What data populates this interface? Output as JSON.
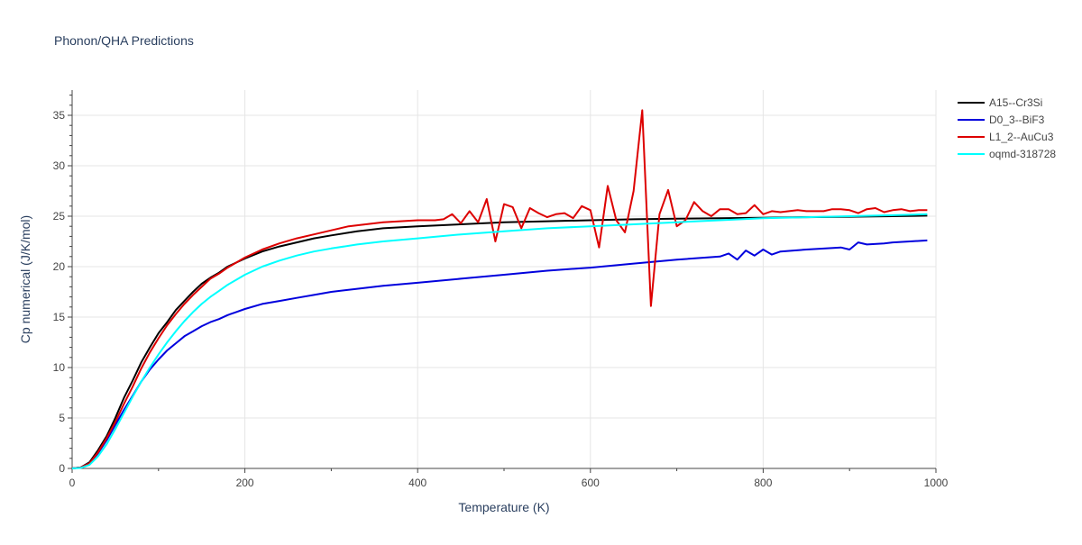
{
  "chart_data": {
    "type": "line",
    "title": "Phonon/QHA Predictions",
    "xlabel": "Temperature (K)",
    "ylabel": "Cp numerical (J/K/mol)",
    "xlim": [
      0,
      1000
    ],
    "ylim": [
      0,
      37.5
    ],
    "xticks": [
      0,
      200,
      400,
      600,
      800,
      1000
    ],
    "yticks": [
      0,
      5,
      10,
      15,
      20,
      25,
      30,
      35
    ],
    "grid": true,
    "legend_position": "top-right",
    "series": [
      {
        "name": "A15--Cr3Si",
        "color": "#000000",
        "x": [
          0,
          10,
          20,
          30,
          40,
          50,
          60,
          70,
          80,
          90,
          100,
          110,
          120,
          130,
          140,
          150,
          160,
          170,
          180,
          190,
          200,
          220,
          240,
          260,
          280,
          300,
          330,
          360,
          400,
          450,
          500,
          550,
          600,
          650,
          700,
          750,
          800,
          850,
          900,
          950,
          990
        ],
        "y": [
          0,
          0.1,
          0.6,
          1.8,
          3.2,
          5.0,
          7.0,
          8.7,
          10.5,
          12.0,
          13.4,
          14.5,
          15.7,
          16.6,
          17.5,
          18.3,
          18.9,
          19.4,
          20.0,
          20.4,
          20.8,
          21.5,
          22.0,
          22.4,
          22.8,
          23.1,
          23.5,
          23.8,
          24.0,
          24.2,
          24.4,
          24.5,
          24.6,
          24.7,
          24.75,
          24.8,
          24.85,
          24.9,
          24.95,
          25.0,
          25.05
        ]
      },
      {
        "name": "D0_3--BiF3",
        "color": "#0000dd",
        "x": [
          0,
          10,
          20,
          30,
          40,
          50,
          60,
          70,
          80,
          90,
          100,
          110,
          120,
          130,
          140,
          150,
          160,
          170,
          180,
          190,
          200,
          220,
          240,
          260,
          280,
          300,
          330,
          360,
          400,
          450,
          500,
          550,
          600,
          650,
          700,
          750,
          760,
          770,
          780,
          790,
          800,
          810,
          820,
          850,
          890,
          900,
          910,
          920,
          940,
          950,
          970,
          990
        ],
        "y": [
          0,
          0.1,
          0.5,
          1.5,
          2.8,
          4.3,
          5.8,
          7.2,
          8.6,
          9.8,
          10.8,
          11.7,
          12.4,
          13.1,
          13.6,
          14.1,
          14.5,
          14.8,
          15.2,
          15.5,
          15.8,
          16.3,
          16.6,
          16.9,
          17.2,
          17.5,
          17.8,
          18.1,
          18.4,
          18.8,
          19.2,
          19.6,
          19.9,
          20.3,
          20.7,
          21.0,
          21.3,
          20.7,
          21.6,
          21.1,
          21.7,
          21.2,
          21.5,
          21.7,
          21.9,
          21.7,
          22.4,
          22.2,
          22.3,
          22.4,
          22.5,
          22.6
        ]
      },
      {
        "name": "L1_2--AuCu3",
        "color": "#dd0000",
        "x": [
          0,
          10,
          20,
          30,
          40,
          50,
          60,
          70,
          80,
          90,
          100,
          110,
          120,
          130,
          140,
          150,
          160,
          170,
          180,
          190,
          200,
          220,
          240,
          260,
          280,
          300,
          320,
          340,
          360,
          380,
          400,
          420,
          430,
          440,
          450,
          460,
          470,
          480,
          490,
          500,
          510,
          520,
          530,
          540,
          550,
          560,
          570,
          580,
          590,
          600,
          610,
          620,
          630,
          640,
          650,
          660,
          670,
          680,
          690,
          700,
          710,
          720,
          730,
          740,
          750,
          760,
          770,
          780,
          790,
          800,
          810,
          820,
          830,
          840,
          850,
          860,
          870,
          880,
          890,
          900,
          910,
          920,
          930,
          940,
          950,
          960,
          970,
          980,
          990
        ],
        "y": [
          0,
          0.1,
          0.5,
          1.6,
          3.0,
          4.6,
          6.4,
          8.1,
          9.9,
          11.5,
          12.9,
          14.2,
          15.3,
          16.3,
          17.2,
          18.0,
          18.8,
          19.3,
          19.9,
          20.4,
          20.9,
          21.7,
          22.3,
          22.8,
          23.2,
          23.6,
          24.0,
          24.2,
          24.4,
          24.5,
          24.6,
          24.6,
          24.7,
          25.2,
          24.3,
          25.5,
          24.4,
          26.7,
          22.5,
          26.2,
          25.9,
          23.8,
          25.8,
          25.3,
          24.9,
          25.2,
          25.3,
          24.8,
          26.0,
          25.6,
          21.9,
          28.0,
          24.6,
          23.4,
          27.5,
          35.5,
          16.1,
          25.2,
          27.6,
          24.0,
          24.6,
          26.4,
          25.5,
          25.0,
          25.7,
          25.7,
          25.2,
          25.3,
          26.1,
          25.2,
          25.5,
          25.4,
          25.5,
          25.6,
          25.5,
          25.5,
          25.5,
          25.7,
          25.7,
          25.6,
          25.3,
          25.7,
          25.8,
          25.4,
          25.6,
          25.7,
          25.5,
          25.6,
          25.6
        ]
      },
      {
        "name": "oqmd-318728",
        "color": "#00ffff",
        "x": [
          0,
          10,
          20,
          30,
          40,
          50,
          60,
          70,
          80,
          90,
          100,
          110,
          120,
          130,
          140,
          150,
          160,
          170,
          180,
          190,
          200,
          220,
          240,
          260,
          280,
          300,
          330,
          360,
          400,
          450,
          500,
          550,
          600,
          650,
          700,
          750,
          800,
          850,
          900,
          950,
          990
        ],
        "y": [
          0,
          0.05,
          0.35,
          1.2,
          2.4,
          3.9,
          5.5,
          7.1,
          8.6,
          10.0,
          11.3,
          12.5,
          13.6,
          14.6,
          15.5,
          16.3,
          17.0,
          17.6,
          18.2,
          18.7,
          19.2,
          20.0,
          20.6,
          21.1,
          21.5,
          21.8,
          22.2,
          22.5,
          22.8,
          23.2,
          23.5,
          23.8,
          24.0,
          24.2,
          24.4,
          24.6,
          24.8,
          24.9,
          25.0,
          25.1,
          25.2
        ]
      }
    ]
  }
}
